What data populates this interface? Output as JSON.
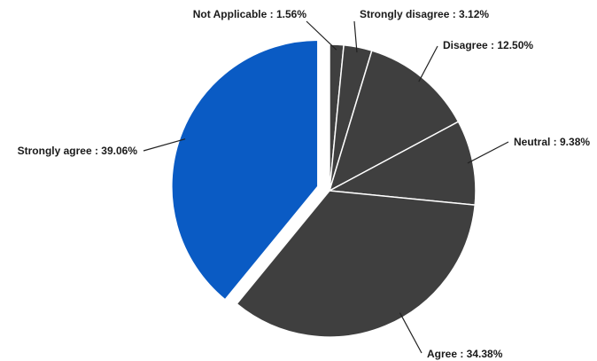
{
  "chart_data": {
    "type": "pie",
    "title": "",
    "slices": [
      {
        "label": "Not Applicable : 1.56%",
        "value": 1.56,
        "color": "#3f3f3f",
        "exploded": false
      },
      {
        "label": "Strongly disagree : 3.12%",
        "value": 3.12,
        "color": "#3f3f3f",
        "exploded": false
      },
      {
        "label": "Disagree : 12.50%",
        "value": 12.5,
        "color": "#3f3f3f",
        "exploded": false
      },
      {
        "label": "Neutral : 9.38%",
        "value": 9.38,
        "color": "#3f3f3f",
        "exploded": false
      },
      {
        "label": "Agree : 34.38%",
        "value": 34.38,
        "color": "#3f3f3f",
        "exploded": false
      },
      {
        "label": "Strongly agree : 39.06%",
        "value": 39.06,
        "color": "#0a5bc4",
        "exploded": true
      }
    ],
    "legend": "none",
    "slice_border_color": "#ffffff"
  }
}
